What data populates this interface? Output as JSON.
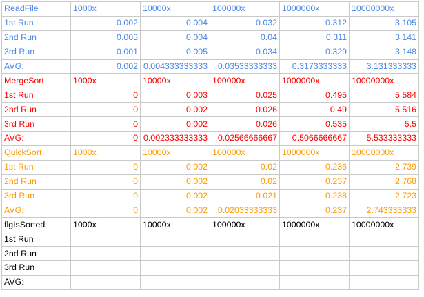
{
  "colors": {
    "readfile": "#4a86e8",
    "mergesort": "#ff0000",
    "quicksort": "#ff9900",
    "flgissorted": "#000000",
    "gridline": "#c9c9c9"
  },
  "sections": [
    {
      "key": "readfile",
      "header": {
        "label": "ReadFile",
        "sizes": [
          "1000x",
          "10000x",
          "100000x",
          "1000000x",
          "10000000x"
        ]
      },
      "rows": [
        {
          "label": "1st Run",
          "values": [
            "0.002",
            "0.004",
            "0.032",
            "0.312",
            "3.105"
          ]
        },
        {
          "label": "2nd Run",
          "values": [
            "0.003",
            "0.004",
            "0.04",
            "0.311",
            "3.141"
          ]
        },
        {
          "label": "3rd Run",
          "values": [
            "0.001",
            "0.005",
            "0.034",
            "0.329",
            "3.148"
          ]
        },
        {
          "label": "AVG:",
          "values": [
            "0.002",
            "0.004333333333",
            "0.03533333333",
            "0.3173333333",
            "3.131333333"
          ]
        }
      ]
    },
    {
      "key": "mergesort",
      "header": {
        "label": "MergeSort",
        "sizes": [
          "1000x",
          "10000x",
          "100000x",
          "1000000x",
          "10000000x"
        ]
      },
      "rows": [
        {
          "label": "1st Run",
          "values": [
            "0",
            "0.003",
            "0.025",
            "0.495",
            "5.584"
          ]
        },
        {
          "label": "2nd Run",
          "values": [
            "0",
            "0.002",
            "0.026",
            "0.49",
            "5.516"
          ]
        },
        {
          "label": "3rd Run",
          "values": [
            "0",
            "0.002",
            "0.026",
            "0.535",
            "5.5"
          ]
        },
        {
          "label": "AVG:",
          "values": [
            "0",
            "0.002333333333",
            "0.02566666667",
            "0.5066666667",
            "5.533333333"
          ]
        }
      ]
    },
    {
      "key": "quicksort",
      "header": {
        "label": "QuickSort",
        "sizes": [
          "1000x",
          "10000x",
          "100000x",
          "1000000x",
          "10000000x"
        ]
      },
      "rows": [
        {
          "label": "1st Run",
          "values": [
            "0",
            "0.002",
            "0.02",
            "0.236",
            "2.739"
          ]
        },
        {
          "label": "2nd Run",
          "values": [
            "0",
            "0.002",
            "0.02",
            "0.237",
            "2.768"
          ]
        },
        {
          "label": "3rd Run",
          "values": [
            "0",
            "0.002",
            "0.021",
            "0.238",
            "2.723"
          ]
        },
        {
          "label": "AVG:",
          "values": [
            "0",
            "0.002",
            "0.02033333333",
            "0.237",
            "2.743333333"
          ]
        }
      ]
    },
    {
      "key": "flgissorted",
      "header": {
        "label": "flgIsSorted",
        "sizes": [
          "1000x",
          "10000x",
          "100000x",
          "1000000x",
          "10000000x"
        ]
      },
      "rows": [
        {
          "label": "1st Run",
          "values": [
            "",
            "",
            "",
            "",
            ""
          ]
        },
        {
          "label": "2nd Run",
          "values": [
            "",
            "",
            "",
            "",
            ""
          ]
        },
        {
          "label": "3rd Run",
          "values": [
            "",
            "",
            "",
            "",
            ""
          ]
        },
        {
          "label": "AVG:",
          "values": [
            "",
            "",
            "",
            "",
            ""
          ]
        }
      ]
    }
  ]
}
